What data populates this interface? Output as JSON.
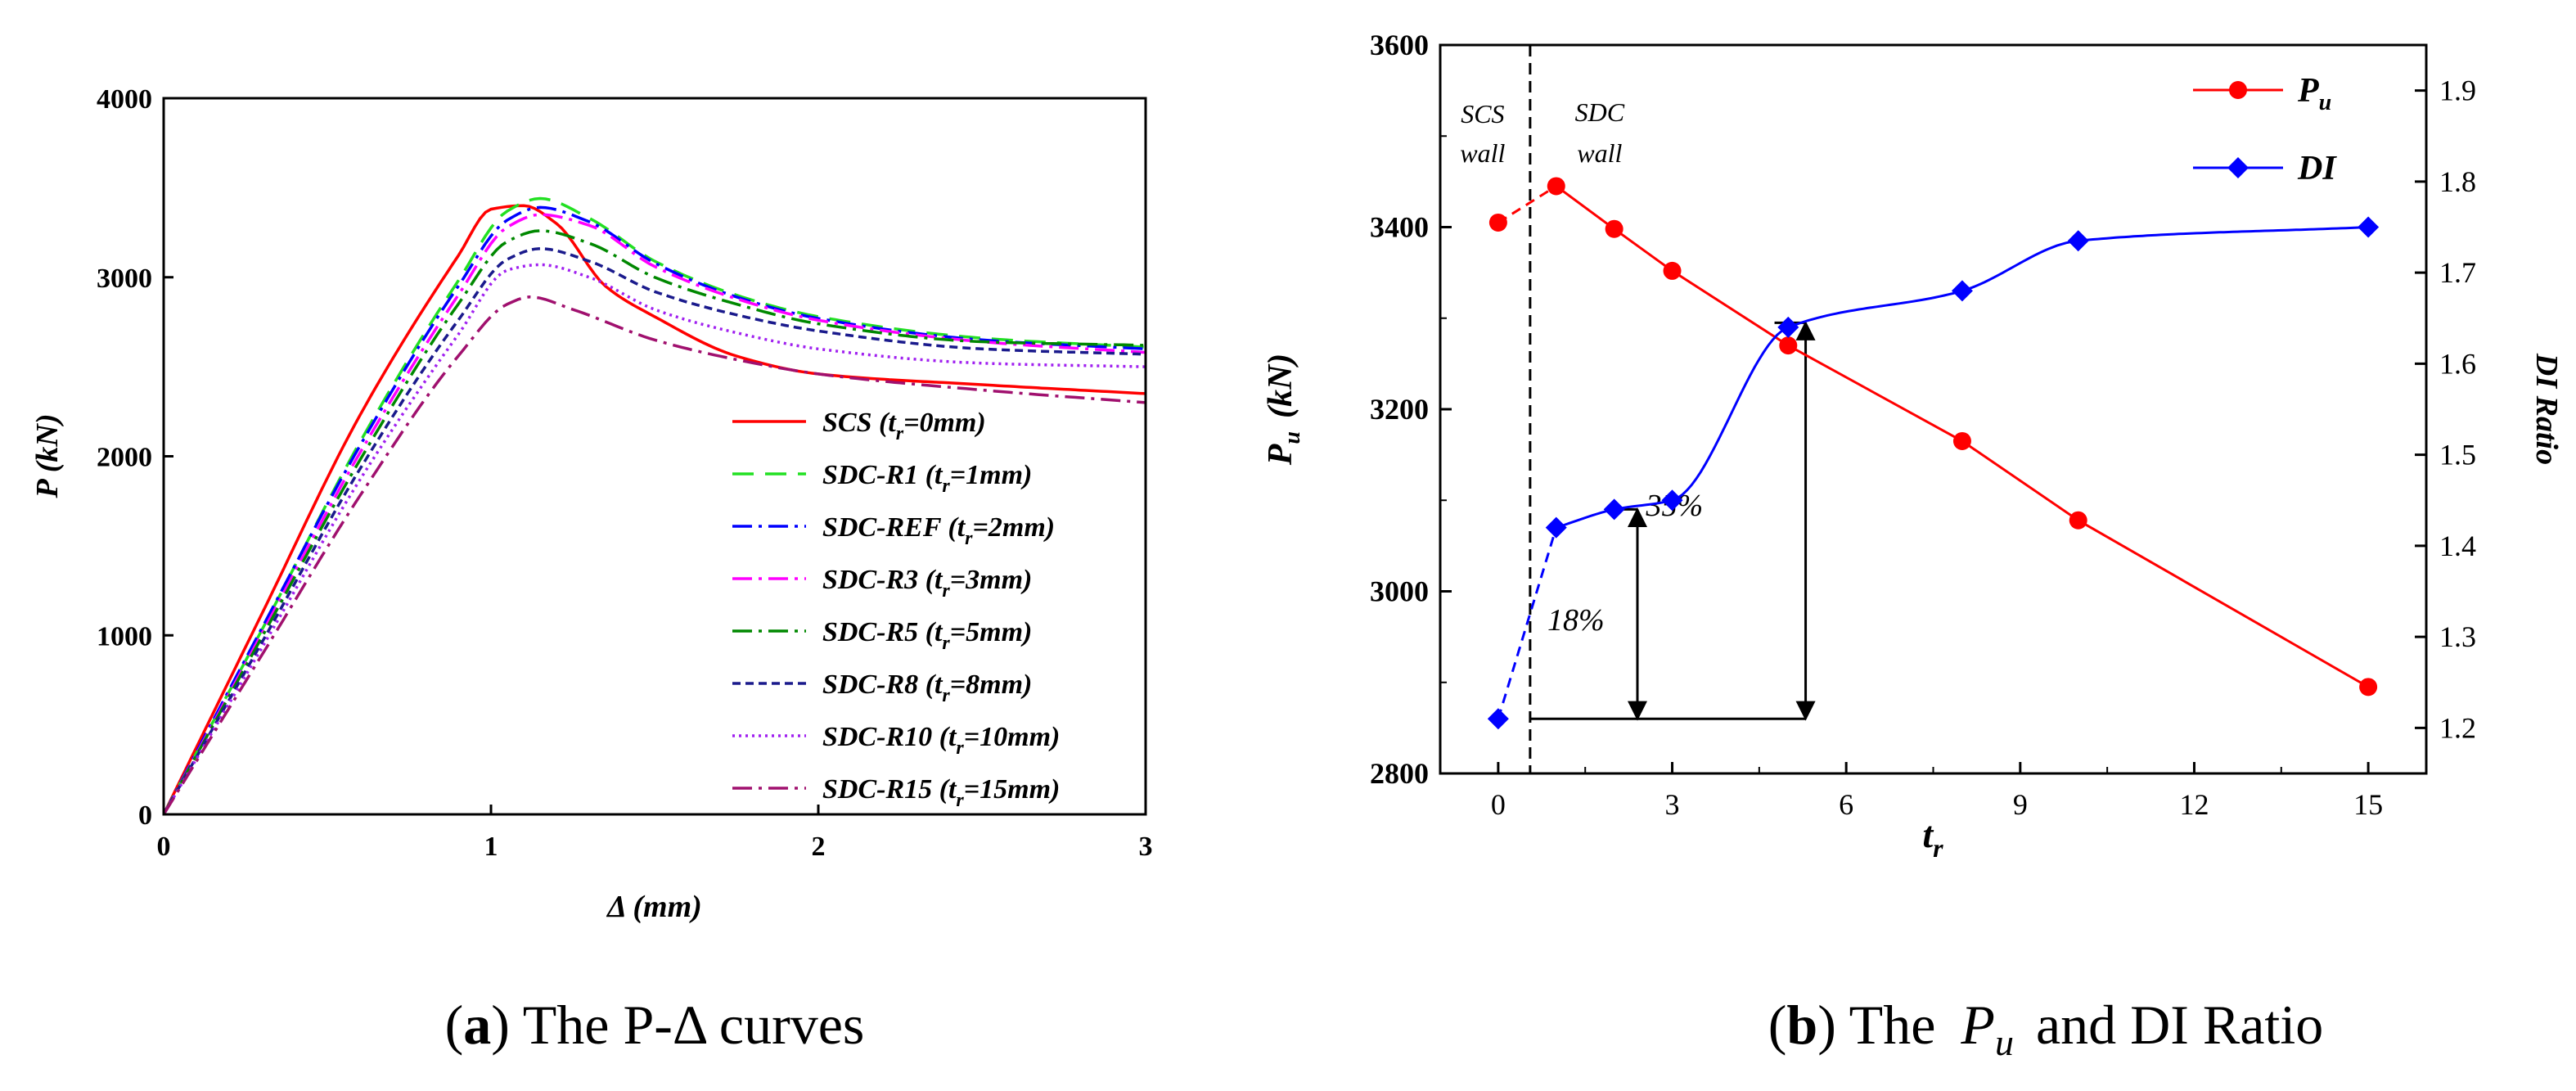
{
  "chart_data": [
    {
      "type": "line",
      "panel": "a",
      "title": "",
      "xlabel": "Δ (mm)",
      "ylabel": "P (kN)",
      "xlim": [
        0,
        3
      ],
      "ylim": [
        0,
        4000
      ],
      "xticks": [
        "0",
        "1",
        "2",
        "3"
      ],
      "yticks": [
        "0",
        "1000",
        "2000",
        "3000",
        "4000"
      ],
      "grid": false,
      "legend_position": "bottom-right",
      "series": [
        {
          "name": "SCS (tr=0mm)",
          "label_main": "SCS (t",
          "label_sub": "r",
          "label_end": "=0mm)",
          "color": "#ff0000",
          "dash": "",
          "x": [
            0,
            0.3,
            0.6,
            0.9,
            1.0,
            1.1,
            1.2,
            1.35,
            1.5,
            1.75,
            2.0,
            2.5,
            3.0
          ],
          "y": [
            0,
            1120,
            2230,
            3120,
            3380,
            3400,
            3300,
            2950,
            2780,
            2560,
            2460,
            2400,
            2350
          ]
        },
        {
          "name": "SDC-R1 (tr=1mm)",
          "label_main": "SDC-R1 (t",
          "label_sub": "r",
          "label_end": "=1mm)",
          "color": "#22e022",
          "dash": "26,14",
          "x": [
            0,
            0.3,
            0.6,
            0.9,
            1.05,
            1.15,
            1.3,
            1.5,
            1.75,
            2.0,
            2.5,
            3.0
          ],
          "y": [
            0,
            1030,
            2080,
            2980,
            3370,
            3440,
            3330,
            3090,
            2900,
            2780,
            2660,
            2610
          ]
        },
        {
          "name": "SDC-REF (tr=2mm)",
          "label_main": "SDC-REF (t",
          "label_sub": "r",
          "label_end": "=2mm)",
          "color": "#0000ff",
          "dash": "24,8,4,8",
          "x": [
            0,
            0.3,
            0.6,
            0.9,
            1.05,
            1.15,
            1.3,
            1.5,
            1.75,
            2.0,
            2.5,
            3.0
          ],
          "y": [
            0,
            1040,
            2060,
            2950,
            3320,
            3390,
            3310,
            3080,
            2890,
            2770,
            2650,
            2600
          ]
        },
        {
          "name": "SDC-R3 (tr=3mm)",
          "label_main": "SDC-R3 (t",
          "label_sub": "r",
          "label_end": "=3mm)",
          "color": "#ff00ff",
          "dash": "24,8,4,8",
          "x": [
            0,
            0.3,
            0.6,
            0.9,
            1.05,
            1.15,
            1.3,
            1.5,
            1.75,
            2.0,
            2.5,
            3.0
          ],
          "y": [
            0,
            1010,
            2020,
            2900,
            3280,
            3350,
            3290,
            3060,
            2880,
            2760,
            2640,
            2580
          ]
        },
        {
          "name": "SDC-R5 (tr=5mm)",
          "label_main": "SDC-R5 (t",
          "label_sub": "r",
          "label_end": "=5mm)",
          "color": "#008800",
          "dash": "24,8,4,8",
          "x": [
            0,
            0.3,
            0.6,
            0.9,
            1.05,
            1.15,
            1.3,
            1.5,
            1.75,
            2.0,
            2.5,
            3.0
          ],
          "y": [
            0,
            990,
            1980,
            2850,
            3200,
            3260,
            3190,
            3000,
            2850,
            2740,
            2640,
            2620
          ]
        },
        {
          "name": "SDC-R8 (tr=8mm)",
          "label_main": "SDC-R8 (t",
          "label_sub": "r",
          "label_end": "=8mm)",
          "color": "#1a1a8c",
          "dash": "10,6",
          "x": [
            0,
            0.3,
            0.6,
            0.9,
            1.05,
            1.15,
            1.3,
            1.5,
            1.75,
            2.0,
            2.5,
            3.0
          ],
          "y": [
            0,
            960,
            1930,
            2760,
            3100,
            3160,
            3090,
            2920,
            2790,
            2700,
            2600,
            2570
          ]
        },
        {
          "name": "SDC-R10 (tr=10mm)",
          "label_main": "SDC-R10 (t",
          "label_sub": "r",
          "label_end": "=10mm)",
          "color": "#a020f0",
          "dash": "3,5",
          "x": [
            0,
            0.3,
            0.6,
            0.9,
            1.05,
            1.15,
            1.3,
            1.5,
            1.75,
            2.0,
            2.5,
            3.0
          ],
          "y": [
            0,
            930,
            1870,
            2680,
            3040,
            3070,
            3000,
            2820,
            2690,
            2600,
            2520,
            2500
          ]
        },
        {
          "name": "SDC-R15 (tr=15mm)",
          "label_main": "SDC-R15 (t",
          "label_sub": "r",
          "label_end": "=15mm)",
          "color": "#a0106e",
          "dash": "24,8,4,8",
          "x": [
            0,
            0.3,
            0.6,
            0.9,
            1.05,
            1.12,
            1.25,
            1.5,
            1.75,
            2.0,
            2.5,
            3.0
          ],
          "y": [
            0,
            890,
            1780,
            2560,
            2850,
            2890,
            2820,
            2650,
            2540,
            2460,
            2370,
            2300
          ]
        }
      ]
    },
    {
      "type": "line",
      "panel": "b",
      "title": "",
      "xlabel": "tr",
      "xlabel_main": "t",
      "xlabel_sub": "r",
      "ylabel": "Pu (kN)",
      "ylabel_main": "P",
      "ylabel_sub": "u",
      "ylabel_end": "(kN)",
      "y2label": "DI Ratio",
      "xlim": [
        -1,
        16
      ],
      "ylim": [
        2800,
        3600
      ],
      "y2lim": [
        1.15,
        1.95
      ],
      "xticks": [
        "0",
        "3",
        "6",
        "9",
        "12",
        "15"
      ],
      "xtick_values": [
        0,
        3,
        6,
        9,
        12,
        15
      ],
      "yticks": [
        "2800",
        "3000",
        "3200",
        "3400",
        "3600"
      ],
      "ytick_values": [
        2800,
        3000,
        3200,
        3400,
        3600
      ],
      "y2ticks": [
        "1.2",
        "1.3",
        "1.4",
        "1.5",
        "1.6",
        "1.7",
        "1.8",
        "1.9"
      ],
      "y2tick_values": [
        1.2,
        1.3,
        1.4,
        1.5,
        1.6,
        1.7,
        1.8,
        1.9
      ],
      "grid": false,
      "legend_position": "top-right",
      "series": [
        {
          "name": "Pu",
          "label_main": "P",
          "label_sub": "u",
          "color": "#ff0000",
          "marker": "circle",
          "axis": "left",
          "x": [
            0,
            1,
            2,
            3,
            5,
            8,
            10,
            15
          ],
          "y": [
            3405,
            3445,
            3398,
            3352,
            3270,
            3165,
            3078,
            2895
          ]
        },
        {
          "name": "DI",
          "label_main": "DI",
          "label_sub": "",
          "color": "#0000ff",
          "marker": "diamond",
          "axis": "right",
          "x": [
            0,
            1,
            2,
            3,
            5,
            8,
            10,
            15
          ],
          "y": [
            1.21,
            1.42,
            1.44,
            1.45,
            1.64,
            1.68,
            1.735,
            1.75
          ]
        }
      ],
      "annotations": {
        "divider_x": 0.55,
        "left_region_line1": "SCS",
        "left_region_line2": "wall",
        "right_region_line1": "SDC",
        "right_region_line2": "wall",
        "pct_18": "18%",
        "pct_35": "35%",
        "baseline_di": 1.21,
        "arrow1_x": 2.4,
        "arrow1_top": 1.44,
        "arrow2_x": 5.3,
        "arrow2_top": 1.645
      }
    }
  ],
  "captions": {
    "a_letter": "a",
    "a_text": " The P-Δ curves",
    "b_letter": "b",
    "b_text_before": " The ",
    "b_sym_main": "P",
    "b_sym_sub": "u",
    "b_text_after": " and DI Ratio"
  }
}
